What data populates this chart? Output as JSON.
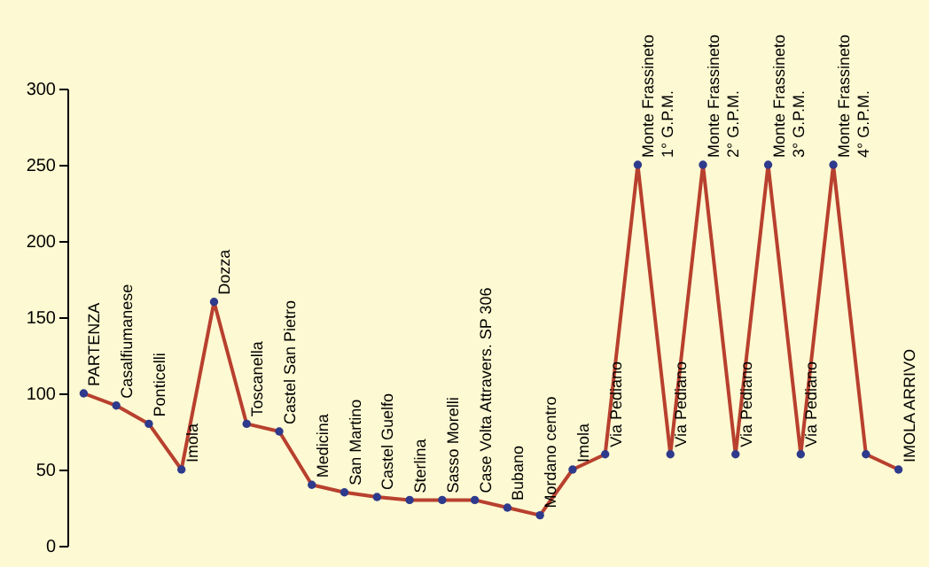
{
  "chart_data": {
    "type": "line",
    "categories": [
      "PARTENZA",
      "Casalfiumanese",
      "Ponticelli",
      "Imola",
      "Dozza",
      "Toscanella",
      "Castel San Pietro",
      "Medicina",
      "San Martino",
      "Castel Guelfo",
      "Sterlina",
      "Sasso Morelli",
      "Case Volta Attravers. SP 306",
      "Bubano",
      "Mordano centro",
      "Imola",
      "Via Pediano",
      "Monte Frassineto\n1° G.P.M.",
      "Via Pediano",
      "Monte Frassineto\n2° G.P.M.",
      "Via Pediano",
      "Monte Frassineto\n3° G.P.M.",
      "Via Pediano",
      "Monte Frassineto\n4° G.P.M.",
      null,
      "IMOLA   ARRIVO"
    ],
    "series": [
      {
        "color": "#b8402e",
        "values": [
          100,
          92,
          80,
          50,
          160,
          80,
          75,
          40,
          35,
          32,
          30,
          30,
          30,
          25,
          20,
          50,
          60,
          250,
          60,
          250,
          60,
          250,
          60,
          250,
          60,
          50
        ]
      }
    ],
    "marker": "circle",
    "line_style": "solid",
    "ylim": [
      0,
      300
    ],
    "yticks": [
      0,
      50,
      100,
      150,
      200,
      250,
      300
    ],
    "grid": false,
    "tick_labels": "y"
  }
}
